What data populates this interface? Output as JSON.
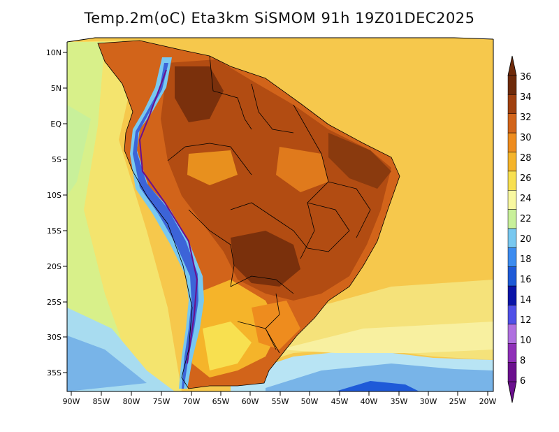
{
  "title": "Temp.2m(oC) Eta3km SiSMOM 91h 19Z01DEC2025",
  "lat_labels": [
    "10N",
    "5N",
    "EQ",
    "5S",
    "10S",
    "15S",
    "20S",
    "25S",
    "30S",
    "35S"
  ],
  "lon_labels": [
    "90W",
    "85W",
    "80W",
    "75W",
    "70W",
    "65W",
    "60W",
    "55W",
    "50W",
    "45W",
    "40W",
    "35W",
    "30W",
    "25W",
    "20W"
  ],
  "colorbar": {
    "levels": [
      "6",
      "8",
      "10",
      "12",
      "14",
      "16",
      "18",
      "20",
      "22",
      "24",
      "26",
      "28",
      "30",
      "32",
      "34",
      "36"
    ],
    "colors": [
      "#6b0f8e",
      "#8f2fb8",
      "#b070e0",
      "#5050e8",
      "#0a14a8",
      "#1e5ad8",
      "#3c8cf0",
      "#78c8f0",
      "#c8f09a",
      "#f8f8a0",
      "#f8e050",
      "#f5b42a",
      "#ee8c1e",
      "#d2641a",
      "#a0400f",
      "#6e2a0a"
    ]
  },
  "legend_colors": {
    "ocean_south": "#78b4e8",
    "ocean_mid": "#f5e072",
    "ocean_warm": "#f7bf45",
    "land_hot": "#a0400f",
    "andes_cold": "#3c64d8"
  }
}
